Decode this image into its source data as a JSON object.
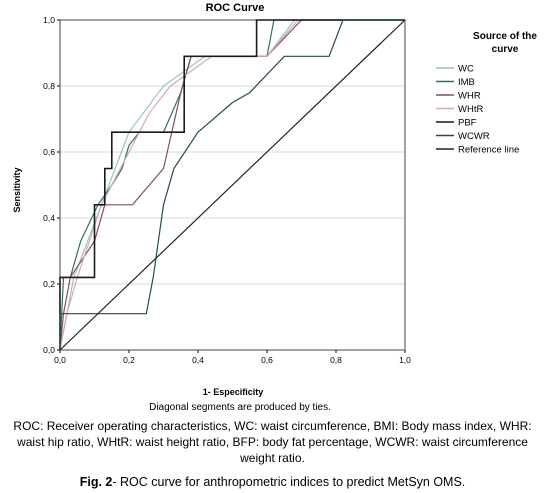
{
  "chart_data": {
    "type": "line",
    "title": "ROC Curve",
    "xlabel": "1- Especificity",
    "xlabel_note": "Diagonal segments are produced by ties.",
    "ylabel": "Sensitivity",
    "xlim": [
      0,
      1
    ],
    "ylim": [
      0,
      1
    ],
    "xticks": [
      "0,0",
      "0,2",
      "0,4",
      "0,6",
      "0,8",
      "1,0"
    ],
    "yticks": [
      "0,0",
      "0,2",
      "0,4",
      "0,6",
      "0,8",
      "1,0"
    ],
    "grid": "horizontal",
    "legend_title": "Source of the curve",
    "legend_position": "right",
    "series": [
      {
        "name": "WC",
        "color": "#8fc7c0",
        "points": [
          [
            0,
            0
          ],
          [
            0.02,
            0.11
          ],
          [
            0.04,
            0.22
          ],
          [
            0.12,
            0.44
          ],
          [
            0.2,
            0.66
          ],
          [
            0.3,
            0.8
          ],
          [
            0.42,
            0.89
          ],
          [
            0.6,
            0.89
          ],
          [
            0.68,
            1.0
          ],
          [
            1,
            1
          ]
        ]
      },
      {
        "name": "IMB",
        "color": "#2f6f68",
        "points": [
          [
            0,
            0
          ],
          [
            0.005,
            0.11
          ],
          [
            0.01,
            0.22
          ],
          [
            0.03,
            0.22
          ],
          [
            0.06,
            0.33
          ],
          [
            0.11,
            0.44
          ],
          [
            0.15,
            0.5
          ],
          [
            0.18,
            0.55
          ],
          [
            0.2,
            0.62
          ],
          [
            0.23,
            0.66
          ],
          [
            0.3,
            0.66
          ],
          [
            0.35,
            0.78
          ],
          [
            0.38,
            0.89
          ],
          [
            0.56,
            0.89
          ],
          [
            0.6,
            0.89
          ],
          [
            0.62,
            1.0
          ],
          [
            1,
            1
          ]
        ]
      },
      {
        "name": "WHR",
        "color": "#8c4a5e",
        "points": [
          [
            0,
            0
          ],
          [
            0.01,
            0.11
          ],
          [
            0.03,
            0.22
          ],
          [
            0.1,
            0.33
          ],
          [
            0.13,
            0.44
          ],
          [
            0.16,
            0.44
          ],
          [
            0.21,
            0.44
          ],
          [
            0.3,
            0.55
          ],
          [
            0.35,
            0.78
          ],
          [
            0.38,
            0.89
          ],
          [
            0.48,
            0.89
          ],
          [
            0.6,
            0.89
          ],
          [
            0.7,
            1.0
          ],
          [
            1,
            1
          ]
        ]
      },
      {
        "name": "WHtR",
        "color": "#d8a8b4",
        "points": [
          [
            0,
            0
          ],
          [
            0.02,
            0.11
          ],
          [
            0.05,
            0.22
          ],
          [
            0.12,
            0.44
          ],
          [
            0.2,
            0.6
          ],
          [
            0.26,
            0.72
          ],
          [
            0.32,
            0.8
          ],
          [
            0.44,
            0.89
          ],
          [
            0.6,
            0.89
          ],
          [
            0.69,
            1.0
          ],
          [
            1,
            1
          ]
        ]
      },
      {
        "name": "PBF",
        "color": "#1a1a1a",
        "points": [
          [
            0,
            0
          ],
          [
            0.0,
            0.22
          ],
          [
            0.1,
            0.22
          ],
          [
            0.1,
            0.44
          ],
          [
            0.13,
            0.44
          ],
          [
            0.13,
            0.55
          ],
          [
            0.15,
            0.55
          ],
          [
            0.15,
            0.66
          ],
          [
            0.36,
            0.66
          ],
          [
            0.36,
            0.89
          ],
          [
            0.57,
            0.89
          ],
          [
            0.57,
            1.0
          ],
          [
            1,
            1
          ]
        ]
      },
      {
        "name": "WCWR",
        "color": "#1f4f4a",
        "points": [
          [
            0,
            0
          ],
          [
            0.0,
            0.11
          ],
          [
            0.2,
            0.11
          ],
          [
            0.25,
            0.11
          ],
          [
            0.27,
            0.22
          ],
          [
            0.3,
            0.44
          ],
          [
            0.33,
            0.55
          ],
          [
            0.4,
            0.66
          ],
          [
            0.5,
            0.75
          ],
          [
            0.55,
            0.78
          ],
          [
            0.65,
            0.89
          ],
          [
            0.78,
            0.89
          ],
          [
            0.82,
            1.0
          ],
          [
            1,
            1
          ]
        ]
      },
      {
        "name": "Reference line",
        "color": "#222222",
        "points": [
          [
            0,
            0
          ],
          [
            1,
            1
          ]
        ]
      }
    ]
  },
  "caption": {
    "abbreviations": "ROC: Receiver operating characteristics, WC:  waist circumference, BMI: Body mass index, WHR: waist hip ratio, WHtR: waist height ratio, BFP: body fat percentage, WCWR: waist circumference weight ratio.",
    "figure_label": "Fig. 2",
    "figure_text": "- ROC curve for anthropometric indices to predict MetSyn OMS."
  }
}
